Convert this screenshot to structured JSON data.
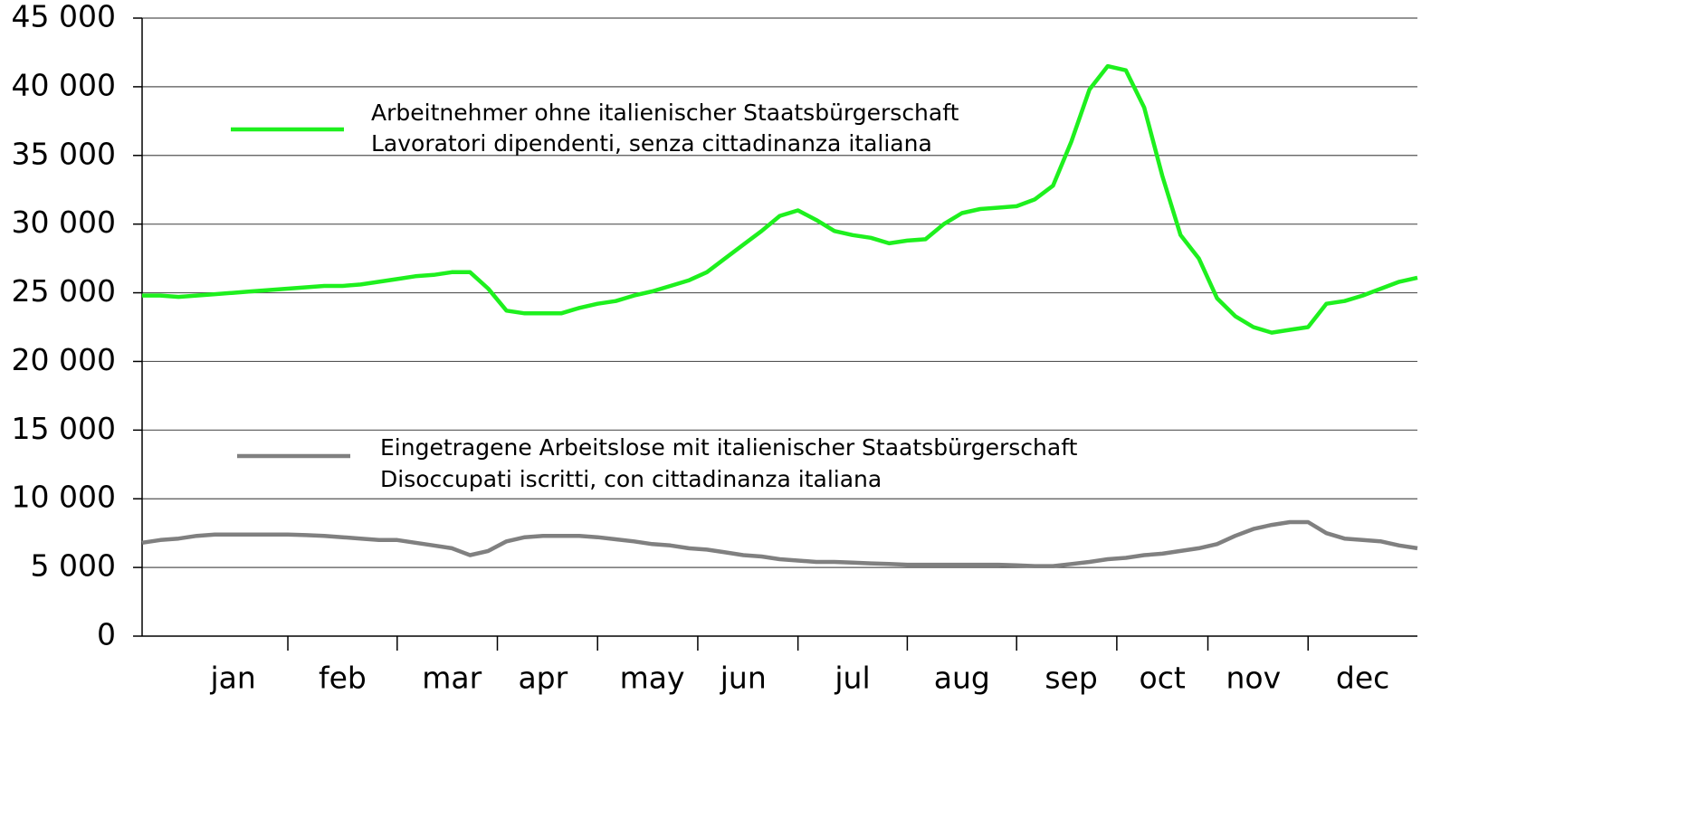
{
  "chart_data": {
    "type": "line",
    "categories": [
      null,
      null,
      null,
      null,
      null,
      "jan",
      null,
      null,
      null,
      null,
      null,
      "feb",
      null,
      null,
      null,
      null,
      null,
      "mar",
      null,
      null,
      null,
      null,
      "apr",
      null,
      null,
      null,
      null,
      null,
      "may",
      null,
      null,
      null,
      null,
      "jun",
      null,
      null,
      null,
      null,
      null,
      "jul",
      null,
      null,
      null,
      null,
      null,
      "aug",
      null,
      null,
      null,
      null,
      null,
      "sep",
      null,
      null,
      null,
      null,
      "oct",
      null,
      null,
      null,
      null,
      "nov",
      null,
      null,
      null,
      null,
      null,
      "dec",
      null,
      null,
      null
    ],
    "series": [
      {
        "name": [
          "Arbeitnehmer ohne italienischer Staatsbürgerschaft",
          "Lavoratori dipendenti, senza cittadinanza italiana"
        ],
        "color": "#1ef01e",
        "values": [
          24800,
          24800,
          24700,
          24800,
          24900,
          25000,
          25100,
          25200,
          25300,
          25400,
          25500,
          25500,
          25600,
          25800,
          26000,
          26200,
          26300,
          26500,
          26500,
          25300,
          23700,
          23500,
          23500,
          23500,
          23900,
          24200,
          24400,
          24800,
          25100,
          25500,
          25900,
          26500,
          27500,
          28500,
          29500,
          30600,
          31000,
          30300,
          29500,
          29200,
          29000,
          28600,
          28800,
          28900,
          30000,
          30800,
          31100,
          31200,
          31300,
          31800,
          32800,
          36000,
          39800,
          41500,
          41200,
          38500,
          33500,
          29200,
          27500,
          24600,
          23300,
          22500,
          22100,
          22300,
          22500,
          24200,
          24400,
          24800,
          25300,
          25800,
          26100
        ]
      },
      {
        "name": [
          "Eingetragene Arbeitslose mit italienischer Staatsbürgerschaft",
          "Disoccupati iscritti, con cittadinanza italiana"
        ],
        "color": "#808080",
        "values": [
          6800,
          7000,
          7100,
          7300,
          7400,
          7400,
          7400,
          7400,
          7400,
          7350,
          7300,
          7200,
          7100,
          7000,
          7000,
          6800,
          6600,
          6400,
          5900,
          6200,
          6900,
          7200,
          7300,
          7300,
          7300,
          7200,
          7050,
          6900,
          6700,
          6600,
          6400,
          6300,
          6100,
          5900,
          5800,
          5600,
          5500,
          5400,
          5400,
          5350,
          5300,
          5250,
          5200,
          5200,
          5200,
          5200,
          5200,
          5200,
          5150,
          5100,
          5100,
          5250,
          5400,
          5600,
          5700,
          5900,
          6000,
          6200,
          6400,
          6700,
          7300,
          7800,
          8100,
          8300,
          8300,
          7500,
          7100,
          7000,
          6900,
          6600,
          6400
        ]
      }
    ],
    "ylim": [
      0,
      45000
    ],
    "yticks": [
      0,
      {
        "value": 5000,
        "label": "5 000"
      },
      {
        "value": 10000,
        "label": "10 000"
      },
      {
        "value": 15000,
        "label": "15 000"
      },
      {
        "value": 20000,
        "label": "20 000"
      },
      {
        "value": 25000,
        "label": "25 000"
      },
      {
        "value": 30000,
        "label": "30 000"
      },
      {
        "value": 35000,
        "label": "35 000"
      },
      {
        "value": 40000,
        "label": "40 000"
      },
      {
        "value": 45000,
        "label": "45 000"
      }
    ],
    "grid": true
  }
}
